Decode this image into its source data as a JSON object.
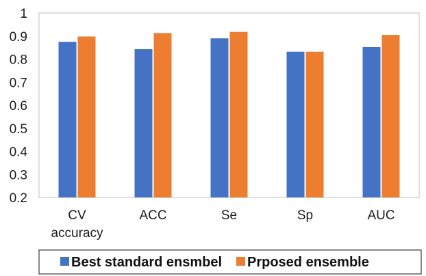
{
  "chart_data": {
    "type": "bar",
    "categories": [
      [
        "CV",
        "accuracy"
      ],
      [
        "ACC"
      ],
      [
        "Se"
      ],
      [
        "Sp"
      ],
      [
        "AUC"
      ]
    ],
    "series": [
      {
        "name": "Best standard ensmbel",
        "color": "#4472C4",
        "values": [
          0.875,
          0.843,
          0.89,
          0.832,
          0.852
        ]
      },
      {
        "name": "Prposed ensemble",
        "color": "#ED7D31",
        "values": [
          0.898,
          0.913,
          0.918,
          0.832,
          0.905
        ]
      }
    ],
    "ylim": [
      0.2,
      1.0
    ],
    "yticks": [
      "0.2",
      "0.3",
      "0.4",
      "0.5",
      "0.6",
      "0.7",
      "0.8",
      "0.9",
      "1"
    ],
    "grid": false,
    "legend_position": "bottom"
  }
}
